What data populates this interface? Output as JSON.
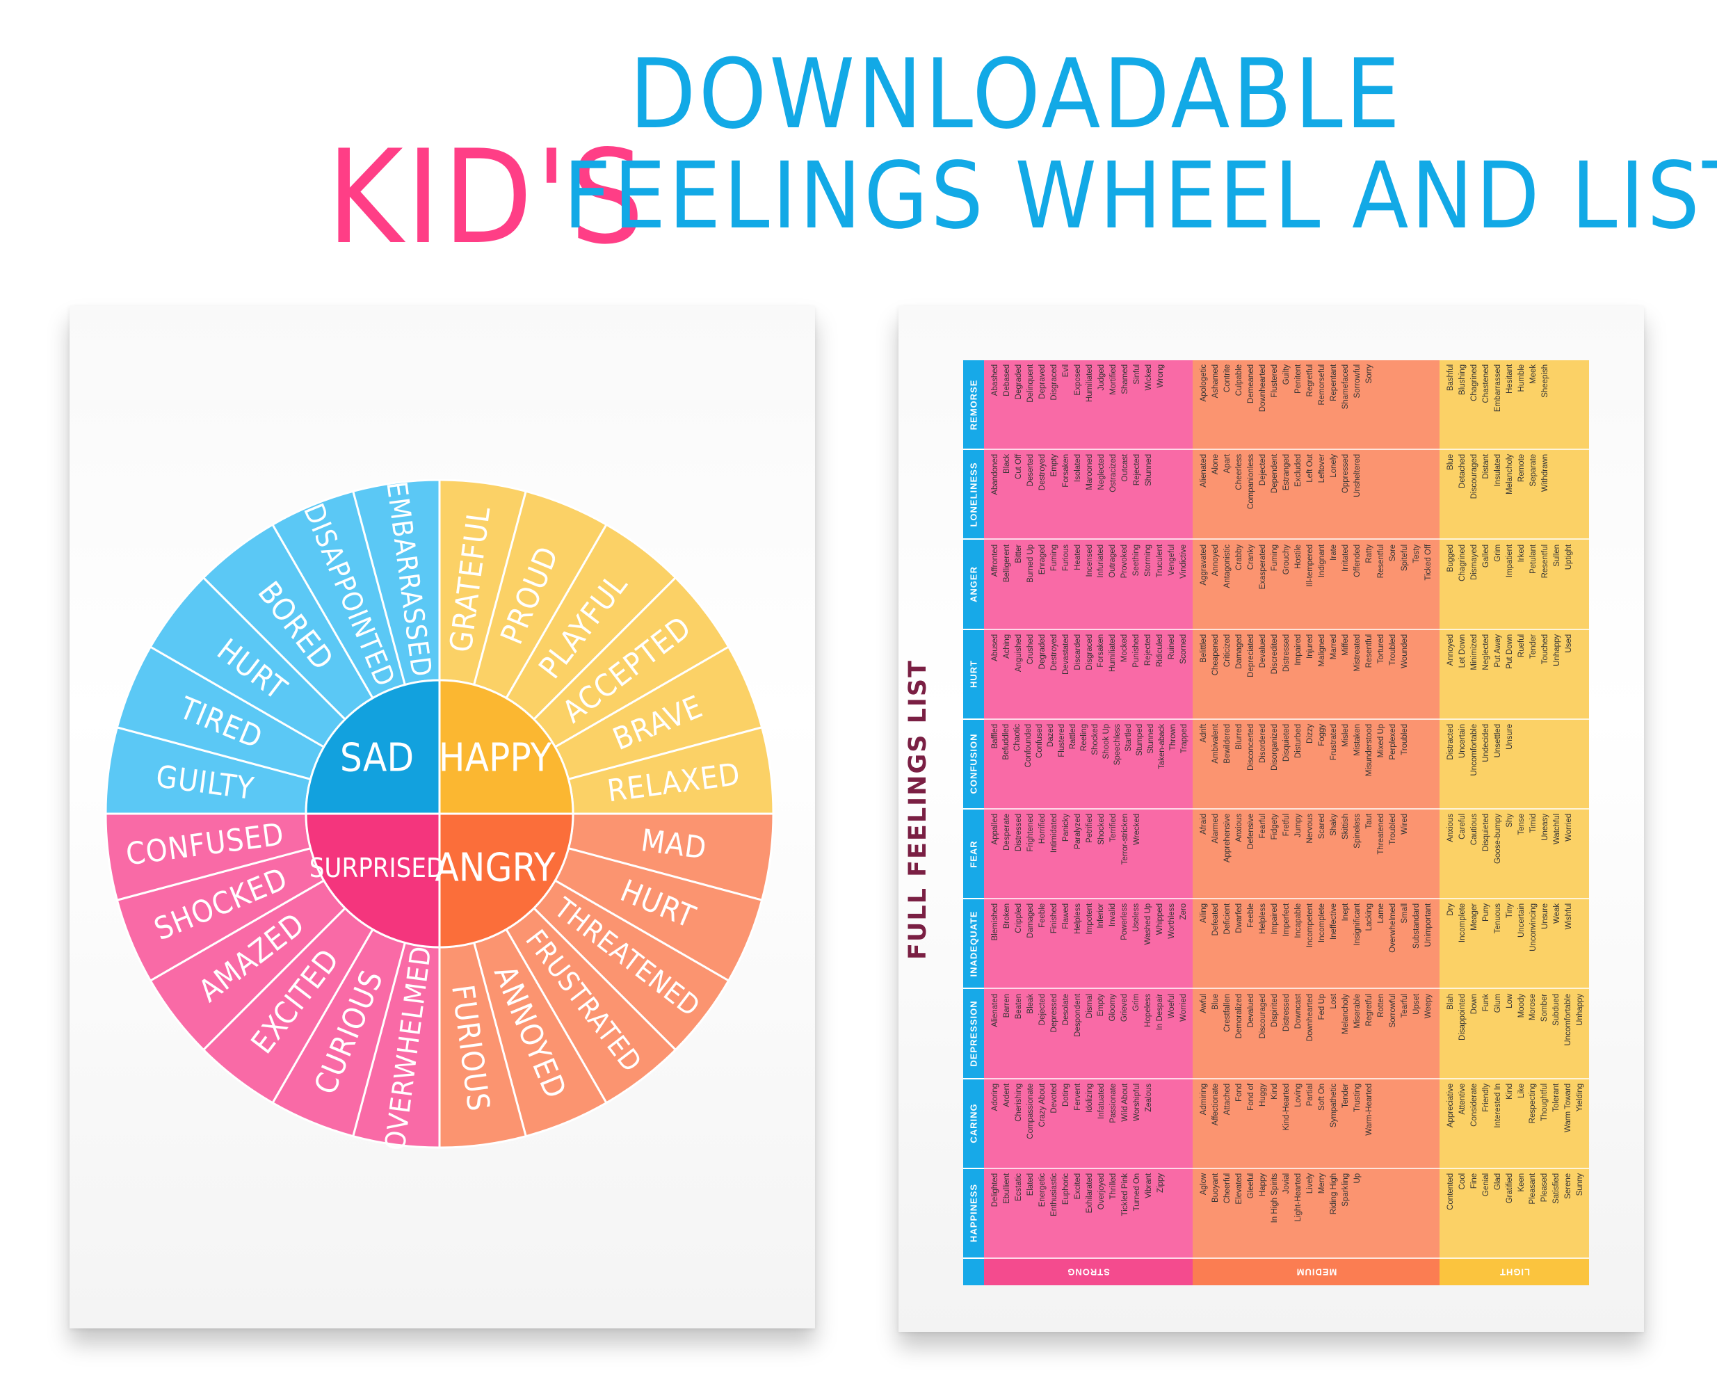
{
  "title": {
    "line1": "DOWNLOADABLE",
    "kids": "KID'S",
    "line2": "FEELINGS WHEEL AND LIST"
  },
  "colors": {
    "blue": "#17a9e8",
    "pink": "#ff3e86",
    "sad_outer": "#5bc8f5",
    "sad_center": "#12a1de",
    "happy_outer": "#fbd166",
    "happy_center": "#fbb731",
    "surprised_outer": "#f96aa6",
    "surprised_center": "#f4357d",
    "angry_outer": "#fb9470",
    "angry_center": "#fb6e3a",
    "strong": "#f96aa6",
    "medium": "#fb9470",
    "light": "#fbd166"
  },
  "wheel": {
    "core": [
      {
        "label": "SAD",
        "key": "sad"
      },
      {
        "label": "HAPPY",
        "key": "happy"
      },
      {
        "label": "SURPRISED",
        "key": "surprised"
      },
      {
        "label": "ANGRY",
        "key": "angry"
      }
    ],
    "happy": [
      "GRATEFUL",
      "PROUD",
      "PLAYFUL",
      "ACCEPTED",
      "BRAVE",
      "RELAXED"
    ],
    "angry": [
      "MAD",
      "HURT",
      "THREATENED",
      "FRUSTRATED",
      "ANNOYED",
      "FURIOUS"
    ],
    "surprised": [
      "OVERWHELMED",
      "CURIOUS",
      "EXCITED",
      "AMAZED",
      "SHOCKED",
      "CONFUSED"
    ],
    "sad": [
      "GUILTY",
      "TIRED",
      "HURT",
      "BORED",
      "DISAPPOINTED",
      "EMBARRASSED"
    ]
  },
  "list": {
    "title": "FULL FEELINGS LIST",
    "intensities": [
      "STRONG",
      "MEDIUM",
      "LIGHT"
    ],
    "categories": [
      {
        "name": "REMORSE",
        "strong": [
          "Abashed",
          "Debased",
          "Degraded",
          "Delinquent",
          "Depraved",
          "Disgraced",
          "Evil",
          "Exposed",
          "Humiliated",
          "Judged",
          "Mortified",
          "Shamed",
          "Sinful",
          "Wicked",
          "Wrong"
        ],
        "medium": [
          "Apologetic",
          "Ashamed",
          "Contrite",
          "Culpable",
          "Demeaned",
          "Downhearted",
          "Flustered",
          "Guilty",
          "Penitent",
          "Regretful",
          "Remorseful",
          "Repentant",
          "Shamefaced",
          "Sorrowful",
          "Sorry"
        ],
        "light": [
          "Bashful",
          "Blushing",
          "Chagrined",
          "Chastened",
          "Embarrassed",
          "Hesitant",
          "Humble",
          "Meek",
          "Sheepish"
        ]
      },
      {
        "name": "LONELINESS",
        "strong": [
          "Abandoned",
          "Black",
          "Cut Off",
          "Deserted",
          "Destroyed",
          "Empty",
          "Forsaken",
          "Isolated",
          "Marooned",
          "Neglected",
          "Ostracized",
          "Outcast",
          "Rejected",
          "Shunned"
        ],
        "medium": [
          "Alienated",
          "Alone",
          "Apart",
          "Cheerless",
          "Companionless",
          "Dejected",
          "Dependent",
          "Estranged",
          "Excluded",
          "Left Out",
          "Leftover",
          "Lonely",
          "Oppressed",
          "Unsheltered"
        ],
        "light": [
          "Blue",
          "Detached",
          "Discouraged",
          "Distant",
          "Insulated",
          "Melancholy",
          "Remote",
          "Separate",
          "Withdrawn"
        ]
      },
      {
        "name": "ANGER",
        "strong": [
          "Affronted",
          "Belligerent",
          "Bitter",
          "Burned Up",
          "Enraged",
          "Fuming",
          "Furious",
          "Heated",
          "Incensed",
          "Infuriated",
          "Outraged",
          "Provoked",
          "Seething",
          "Storming",
          "Truculent",
          "Vengeful",
          "Vindictive"
        ],
        "medium": [
          "Aggravated",
          "Annoyed",
          "Antagonistic",
          "Crabby",
          "Cranky",
          "Exasperated",
          "Fuming",
          "Grouchy",
          "Hostile",
          "Ill-tempered",
          "Indignant",
          "Irate",
          "Irritated",
          "Offended",
          "Ratty",
          "Resentful",
          "Sore",
          "Spiteful",
          "Testy",
          "Ticked Off"
        ],
        "light": [
          "Bugged",
          "Chagrined",
          "Dismayed",
          "Galled",
          "Grim",
          "Impatient",
          "Irked",
          "Petulant",
          "Resentful",
          "Sullen",
          "Uptight"
        ]
      },
      {
        "name": "HURT",
        "strong": [
          "Abused",
          "Aching",
          "Anguished",
          "Crushed",
          "Degraded",
          "Destroyed",
          "Devastated",
          "Discarded",
          "Disgraced",
          "Forsaken",
          "Humiliated",
          "Mocked",
          "Punished",
          "Rejected",
          "Ridiculed",
          "Ruined",
          "Scorned"
        ],
        "medium": [
          "Belittled",
          "Cheapened",
          "Criticized",
          "Damaged",
          "Depreciated",
          "Devalued",
          "Discredited",
          "Distressed",
          "Impaired",
          "Injured",
          "Maligned",
          "Marred",
          "Miffed",
          "Mistreated",
          "Resentful",
          "Tortured",
          "Troubled",
          "Wounded"
        ],
        "light": [
          "Annoyed",
          "Let Down",
          "Minimized",
          "Neglected",
          "Put Away",
          "Put Down",
          "Rueful",
          "Tender",
          "Touched",
          "Unhappy",
          "Used"
        ]
      },
      {
        "name": "CONFUSION",
        "strong": [
          "Baffled",
          "Befuddled",
          "Chaotic",
          "Confounded",
          "Confused",
          "Dazed",
          "Flustered",
          "Rattled",
          "Reeling",
          "Shocked",
          "Shook Up",
          "Speechless",
          "Startled",
          "Stumped",
          "Stunned",
          "Taken-aback",
          "Thrown",
          "Trapped"
        ],
        "medium": [
          "Adrift",
          "Ambivalent",
          "Bewildered",
          "Blurred",
          "Disconcerted",
          "Disordered",
          "Disorganized",
          "Disquieted",
          "Disturbed",
          "Dizzy",
          "Foggy",
          "Frustrated",
          "Misled",
          "Mistaken",
          "Misunderstood",
          "Mixed Up",
          "Perplexed",
          "Troubled"
        ],
        "light": [
          "Distracted",
          "Uncertain",
          "Uncomfortable",
          "Undecided",
          "Unsettled",
          "Unsure"
        ]
      },
      {
        "name": "FEAR",
        "strong": [
          "Appalled",
          "Desperate",
          "Distressed",
          "Frightened",
          "Horrified",
          "Intimidated",
          "Panicky",
          "Paralyzed",
          "Petrified",
          "Shocked",
          "Terrified",
          "Terror-stricken",
          "Wrecked"
        ],
        "medium": [
          "Afraid",
          "Alarmed",
          "Apprehensive",
          "Anxious",
          "Defensive",
          "Fearful",
          "Fidgety",
          "Fretful",
          "Jumpy",
          "Nervous",
          "Scared",
          "Shaky",
          "Skittish",
          "Spineless",
          "Taut",
          "Threatened",
          "Troubled",
          "Wired"
        ],
        "light": [
          "Anxious",
          "Careful",
          "Cautious",
          "Disquieted",
          "Goose-bumpy",
          "Shy",
          "Tense",
          "Timid",
          "Uneasy",
          "Watchful",
          "Worried"
        ]
      },
      {
        "name": "INADEQUATE",
        "strong": [
          "Blemished",
          "Broken",
          "Crippled",
          "Damaged",
          "Feeble",
          "Finished",
          "Flawed",
          "Helpless",
          "Impotent",
          "Inferior",
          "Invalid",
          "Powerless",
          "Useless",
          "Washed Up",
          "Whipped",
          "Worthless",
          "Zero"
        ],
        "medium": [
          "Ailing",
          "Defeated",
          "Deficient",
          "Dwarfed",
          "Feeble",
          "Helpless",
          "Impaired",
          "Imperfect",
          "Incapable",
          "Incompetent",
          "Incomplete",
          "Ineffective",
          "Inept",
          "Insignificant",
          "Lacking",
          "Lame",
          "Overwhelmed",
          "Small",
          "Substandard",
          "Unimportant"
        ],
        "light": [
          "Dry",
          "Incomplete",
          "Meager",
          "Puny",
          "Tenuous",
          "Tiny",
          "Uncertain",
          "Unconvincing",
          "Unsure",
          "Weak",
          "Wishful"
        ]
      },
      {
        "name": "DEPRESSION",
        "strong": [
          "Alienated",
          "Barren",
          "Beaten",
          "Bleak",
          "Dejected",
          "Depressed",
          "Desolate",
          "Despondent",
          "Dismal",
          "Empty",
          "Gloomy",
          "Grieved",
          "Grim",
          "Hopeless",
          "In Despair",
          "Woeful",
          "Worried"
        ],
        "medium": [
          "Awful",
          "Blue",
          "Crestfallen",
          "Demoralized",
          "Devalued",
          "Discouraged",
          "Dispirited",
          "Distressed",
          "Downcast",
          "Downhearted",
          "Fed Up",
          "Lost",
          "Melancholy",
          "Miserable",
          "Regretful",
          "Rotten",
          "Sorrowful",
          "Tearful",
          "Upset",
          "Weepy"
        ],
        "light": [
          "Blah",
          "Disappointed",
          "Down",
          "Funk",
          "Glum",
          "Low",
          "Moody",
          "Morose",
          "Somber",
          "Subdued",
          "Uncomfortable",
          "Unhappy"
        ]
      },
      {
        "name": "CARING",
        "strong": [
          "Adoring",
          "Ardent",
          "Cherishing",
          "Compassionate",
          "Crazy About",
          "Devoted",
          "Doting",
          "Fervent",
          "Idolizing",
          "Infatuated",
          "Passionate",
          "Wild About",
          "Worshipful",
          "Zealous"
        ],
        "medium": [
          "Admiring",
          "Affectionate",
          "Attached",
          "Fond",
          "Fond of",
          "Huggy",
          "Kind",
          "Kind-Hearted",
          "Loving",
          "Partial",
          "Soft On",
          "Sympathetic",
          "Tender",
          "Trusting",
          "Warm-Hearted"
        ],
        "light": [
          "Appreciative",
          "Attentive",
          "Considerate",
          "Friendly",
          "Interested In",
          "Kind",
          "Like",
          "Respecting",
          "Thoughtful",
          "Tolerant",
          "Warm Toward",
          "Yielding"
        ]
      },
      {
        "name": "HAPPINESS",
        "strong": [
          "Delighted",
          "Ebullient",
          "Ecstatic",
          "Elated",
          "Energetic",
          "Enthusiastic",
          "Euphoric",
          "Excited",
          "Exhilarated",
          "Overjoyed",
          "Thrilled",
          "Tickled Pink",
          "Turned On",
          "Vibrant",
          "Zippy"
        ],
        "medium": [
          "Aglow",
          "Buoyant",
          "Cheerful",
          "Elevated",
          "Gleeful",
          "Happy",
          "In High Spirits",
          "Jovial",
          "Light-Hearted",
          "Lively",
          "Merry",
          "Riding High",
          "Sparkling",
          "Up"
        ],
        "light": [
          "Contented",
          "Cool",
          "Fine",
          "Genial",
          "Glad",
          "Gratified",
          "Keen",
          "Pleasant",
          "Pleased",
          "Satisfied",
          "Serene",
          "Sunny"
        ]
      }
    ]
  }
}
